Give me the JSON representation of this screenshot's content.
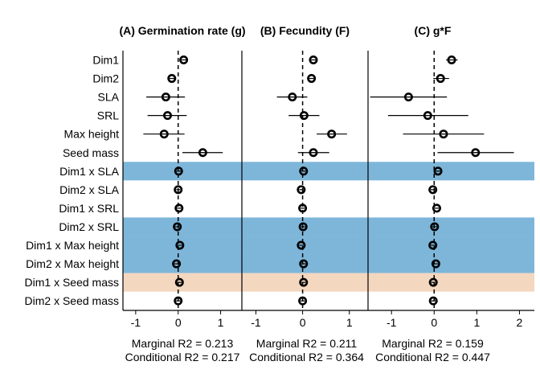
{
  "chart_data": {
    "type": "forest",
    "row_labels": [
      "Dim1",
      "Dim2",
      "SLA",
      "SRL",
      "Max height",
      "Seed mass",
      "Dim1 x SLA",
      "Dim2 x SLA",
      "Dim1 x SRL",
      "Dim2 x SRL",
      "Dim1 x Max height",
      "Dim2 x Max height",
      "Dim1 x Seed mass",
      "Dim2 x Seed mass"
    ],
    "row_highlight": [
      "none",
      "none",
      "none",
      "none",
      "none",
      "none",
      "blue",
      "none",
      "none",
      "blue",
      "blue",
      "blue",
      "peach",
      "none"
    ],
    "highlight_colors": {
      "blue": "#7eb6da",
      "peach": "#f4d7bf"
    },
    "panels": [
      {
        "title": "(A) Germination rate (g)",
        "xlim": [
          -1.3,
          1.5
        ],
        "ticks": [
          -1,
          0,
          1
        ],
        "estimates": [
          0.13,
          -0.15,
          -0.29,
          -0.25,
          -0.33,
          0.58,
          0.01,
          0.0,
          0.02,
          -0.02,
          0.04,
          -0.04,
          0.03,
          0.0
        ],
        "lower": [
          0.06,
          -0.25,
          -0.75,
          -0.72,
          -0.82,
          0.1,
          -0.04,
          -0.04,
          -0.03,
          -0.07,
          -0.01,
          -0.09,
          -0.02,
          -0.05
        ],
        "upper": [
          0.2,
          -0.05,
          0.16,
          0.2,
          0.15,
          1.05,
          0.06,
          0.04,
          0.07,
          0.03,
          0.09,
          0.01,
          0.08,
          0.05
        ],
        "marginal_r2": "Marginal R2 = 0.213",
        "conditional_r2": "Conditional R2 = 0.217"
      },
      {
        "title": "(B) Fecundity (F)",
        "xlim": [
          -1.3,
          1.4
        ],
        "ticks": [
          -1,
          0,
          1
        ],
        "estimates": [
          0.23,
          0.19,
          -0.22,
          0.03,
          0.62,
          0.23,
          0.02,
          -0.03,
          0.0,
          0.01,
          -0.03,
          0.02,
          0.02,
          0.0
        ],
        "lower": [
          0.15,
          0.1,
          -0.55,
          -0.3,
          0.3,
          -0.1,
          -0.02,
          -0.07,
          -0.04,
          -0.03,
          -0.07,
          -0.02,
          -0.02,
          -0.04
        ],
        "upper": [
          0.31,
          0.28,
          0.1,
          0.36,
          0.95,
          0.57,
          0.06,
          0.01,
          0.04,
          0.05,
          0.01,
          0.06,
          0.06,
          0.04
        ],
        "marginal_r2": "Marginal R2 = 0.211",
        "conditional_r2": "Conditional R2 = 0.364"
      },
      {
        "title": "(C) g*F",
        "xlim": [
          -1.55,
          2.35
        ],
        "ticks": [
          -1,
          0,
          1,
          2
        ],
        "estimates": [
          0.41,
          0.15,
          -0.6,
          -0.15,
          0.22,
          0.97,
          0.09,
          -0.03,
          0.06,
          0.01,
          -0.03,
          0.04,
          -0.02,
          -0.02
        ],
        "lower": [
          0.28,
          -0.02,
          -1.5,
          -1.08,
          -0.73,
          0.08,
          0.04,
          -0.08,
          0.01,
          -0.04,
          -0.08,
          -0.01,
          -0.07,
          -0.07
        ],
        "upper": [
          0.55,
          0.35,
          0.3,
          0.8,
          1.17,
          1.87,
          0.14,
          0.02,
          0.11,
          0.06,
          0.02,
          0.09,
          0.03,
          0.03
        ],
        "marginal_r2": "Marginal R2 = 0.159",
        "conditional_r2": "Conditional R2 = 0.447"
      }
    ]
  }
}
